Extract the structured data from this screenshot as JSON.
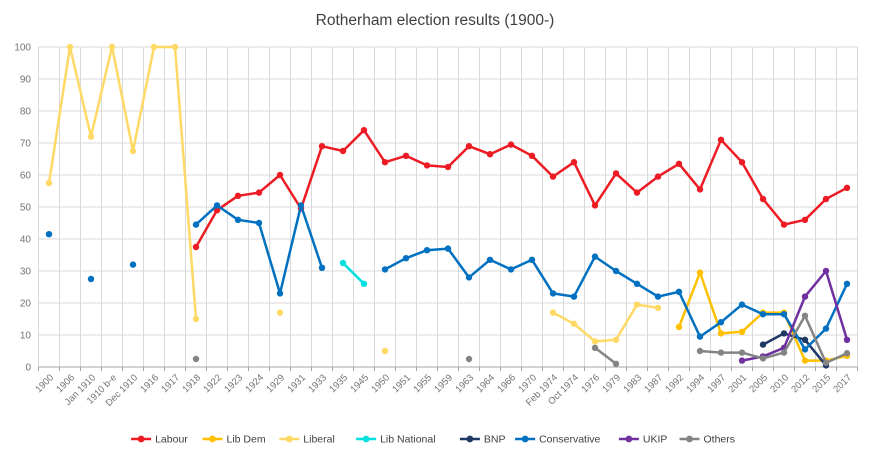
{
  "chart_data": {
    "type": "line",
    "title": "Rotherham election results (1900-)",
    "xlabel": "",
    "ylabel": "",
    "ylim": [
      0,
      100
    ],
    "ytick_step": 10,
    "grid": true,
    "legend_position": "bottom",
    "markers": true,
    "colors": {
      "grid": "#d9d9d9",
      "axis": "#a6a6a6",
      "tick_label": "#737373",
      "title": "#404040"
    },
    "categories": [
      "1900",
      "1906",
      "Jan 1910",
      "1910 b-e",
      "Dec 1910",
      "1916",
      "1917",
      "1918",
      "1922",
      "1923",
      "1924",
      "1929",
      "1931",
      "1933",
      "1935",
      "1945",
      "1950",
      "1951",
      "1955",
      "1959",
      "1963",
      "1964",
      "1966",
      "1970",
      "Feb 1974",
      "Oct 1974",
      "1976",
      "1979",
      "1983",
      "1987",
      "1992",
      "1994",
      "1997",
      "2001",
      "2005",
      "2010",
      "2012",
      "2015",
      "2017"
    ],
    "series": [
      {
        "name": "Labour",
        "color": "#ed1c24",
        "values": [
          null,
          null,
          null,
          null,
          null,
          null,
          null,
          37.5,
          49,
          53.5,
          54.5,
          60,
          49.5,
          69,
          67.5,
          74,
          64,
          66,
          63,
          62.5,
          69,
          66.5,
          69.5,
          66,
          59.5,
          64,
          50.5,
          60.5,
          54.5,
          59.5,
          63.5,
          55.5,
          71,
          64,
          52.5,
          44.5,
          46,
          52.5,
          56
        ]
      },
      {
        "name": "Lib Dem",
        "color": "#ffc000",
        "values": [
          null,
          null,
          null,
          null,
          null,
          null,
          null,
          null,
          null,
          null,
          null,
          null,
          null,
          null,
          null,
          null,
          null,
          null,
          null,
          null,
          null,
          null,
          null,
          null,
          null,
          null,
          null,
          null,
          null,
          null,
          12.5,
          29.5,
          10.5,
          11,
          17,
          17,
          2,
          2,
          3.5
        ]
      },
      {
        "name": "Liberal",
        "color": "#ffd965",
        "values": [
          57.5,
          100,
          72,
          100,
          67.5,
          100,
          100,
          15,
          null,
          null,
          null,
          17,
          null,
          null,
          null,
          null,
          5,
          null,
          null,
          null,
          null,
          null,
          null,
          null,
          17,
          13.5,
          8,
          8.5,
          19.5,
          18.5,
          null,
          null,
          null,
          null,
          null,
          null,
          null,
          null,
          null
        ]
      },
      {
        "name": "Lib National",
        "color": "#00e0e0",
        "values": [
          null,
          null,
          null,
          null,
          null,
          null,
          null,
          null,
          null,
          null,
          null,
          null,
          null,
          null,
          32.5,
          26,
          null,
          null,
          null,
          null,
          null,
          null,
          null,
          null,
          null,
          null,
          null,
          null,
          null,
          null,
          null,
          null,
          null,
          null,
          null,
          null,
          null,
          null,
          null
        ]
      },
      {
        "name": "BNP",
        "color": "#1f3864",
        "values": [
          null,
          null,
          null,
          null,
          null,
          null,
          null,
          null,
          null,
          null,
          null,
          null,
          null,
          null,
          null,
          null,
          null,
          null,
          null,
          null,
          null,
          null,
          null,
          null,
          null,
          null,
          null,
          null,
          null,
          null,
          null,
          null,
          null,
          null,
          7,
          10.5,
          8.5,
          0.5,
          null
        ]
      },
      {
        "name": "Conservative",
        "color": "#0070c0",
        "values": [
          41.5,
          null,
          27.5,
          null,
          32,
          null,
          null,
          44.5,
          50.5,
          46,
          45,
          23,
          50.5,
          31,
          null,
          null,
          30.5,
          34,
          36.5,
          37,
          28,
          33.5,
          30.5,
          33.5,
          23,
          22,
          34.5,
          30,
          26,
          22,
          23.5,
          9.5,
          14,
          19.5,
          16.5,
          16.5,
          5.5,
          12,
          26
        ]
      },
      {
        "name": "UKIP",
        "color": "#7030a0",
        "values": [
          null,
          null,
          null,
          null,
          null,
          null,
          null,
          null,
          null,
          null,
          null,
          null,
          null,
          null,
          null,
          null,
          null,
          null,
          null,
          null,
          null,
          null,
          null,
          null,
          null,
          null,
          null,
          null,
          null,
          null,
          null,
          null,
          null,
          2,
          3.3,
          6,
          22,
          30,
          8.5
        ]
      },
      {
        "name": "Others",
        "color": "#848484",
        "values": [
          null,
          null,
          null,
          null,
          null,
          null,
          null,
          2.5,
          null,
          null,
          null,
          null,
          null,
          null,
          null,
          null,
          null,
          null,
          null,
          null,
          2.5,
          null,
          null,
          null,
          null,
          null,
          6,
          1,
          null,
          null,
          null,
          5,
          4.5,
          4.5,
          2.7,
          4.5,
          16,
          1.3,
          4.3
        ]
      }
    ]
  }
}
